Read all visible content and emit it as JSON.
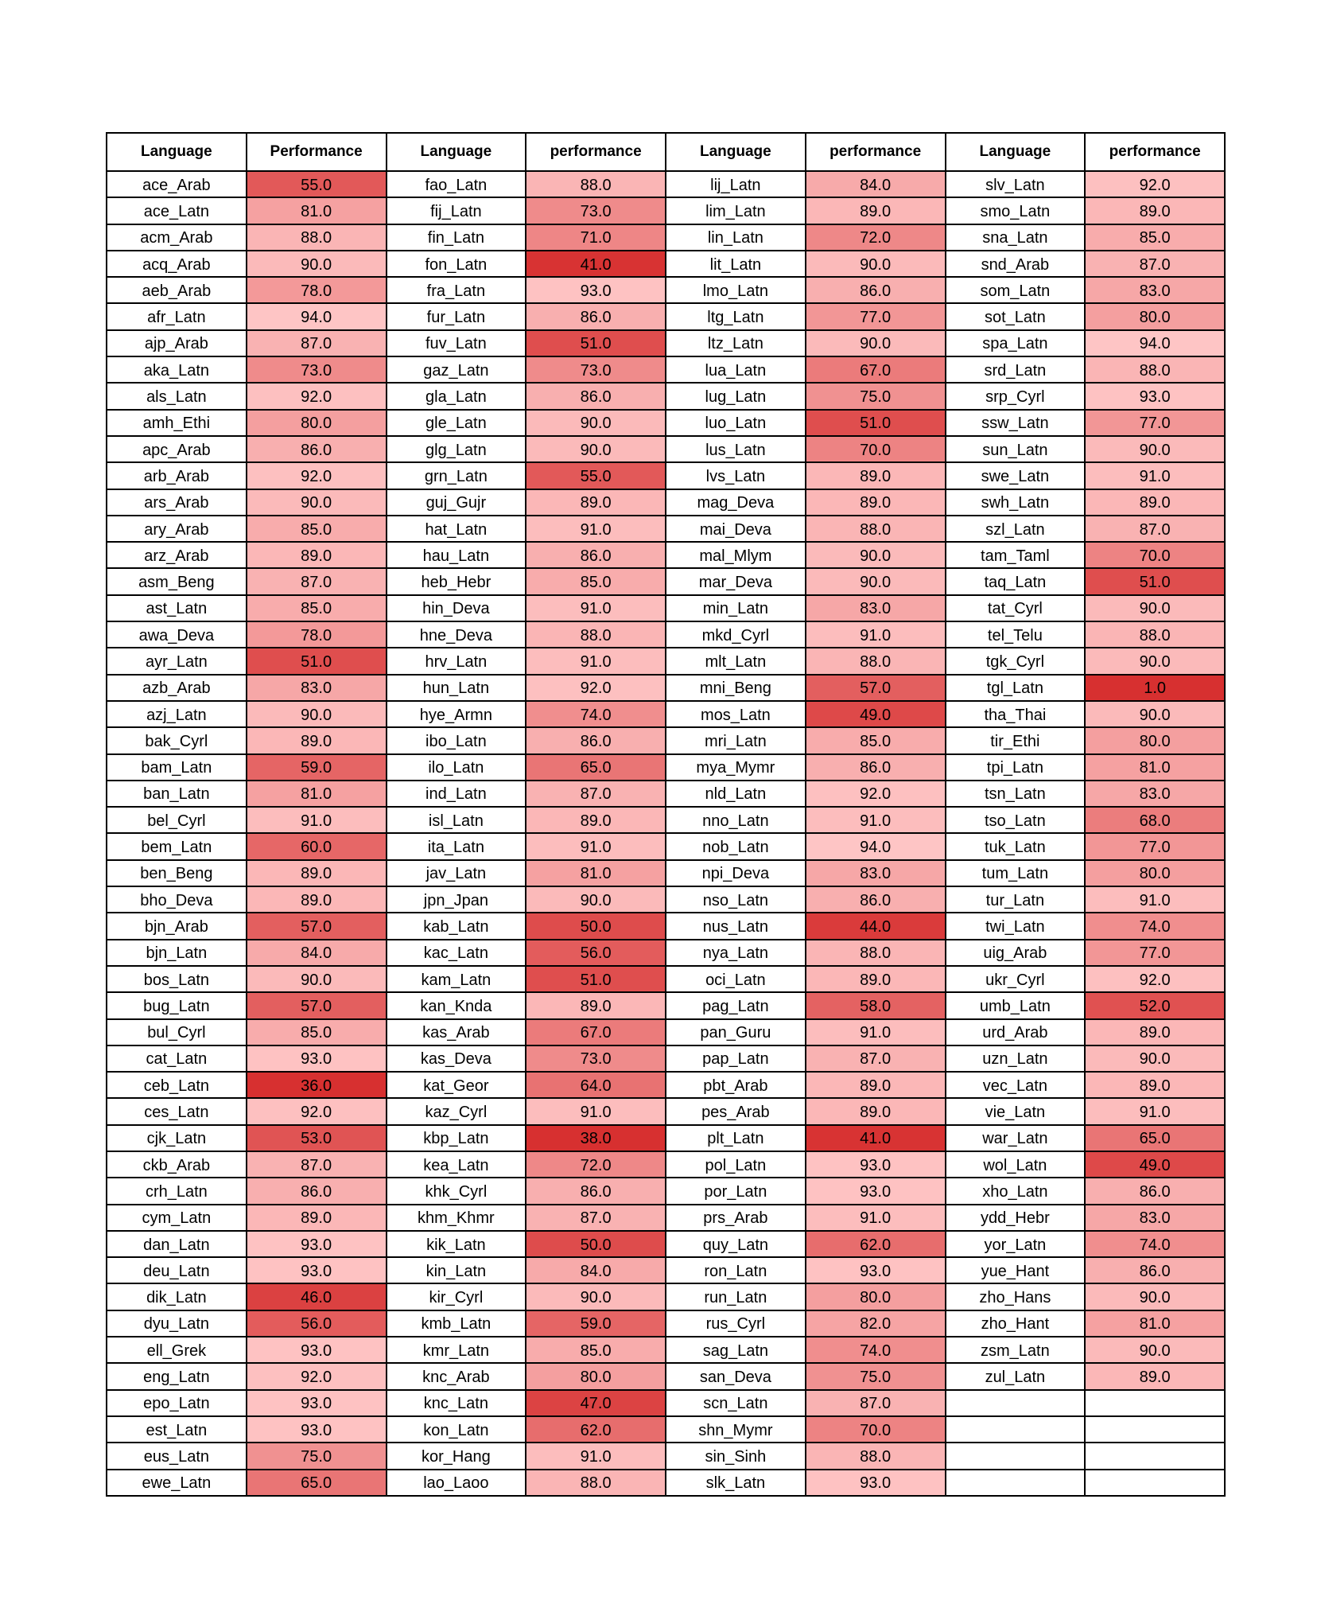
{
  "headers": [
    "Language",
    "Performance",
    "Language",
    "performance",
    "Language",
    "performance",
    "Language",
    "performance"
  ],
  "columns": [
    [
      [
        "ace_Arab",
        "55.0"
      ],
      [
        "ace_Latn",
        "81.0"
      ],
      [
        "acm_Arab",
        "88.0"
      ],
      [
        "acq_Arab",
        "90.0"
      ],
      [
        "aeb_Arab",
        "78.0"
      ],
      [
        "afr_Latn",
        "94.0"
      ],
      [
        "ajp_Arab",
        "87.0"
      ],
      [
        "aka_Latn",
        "73.0"
      ],
      [
        "als_Latn",
        "92.0"
      ],
      [
        "amh_Ethi",
        "80.0"
      ],
      [
        "apc_Arab",
        "86.0"
      ],
      [
        "arb_Arab",
        "92.0"
      ],
      [
        "ars_Arab",
        "90.0"
      ],
      [
        "ary_Arab",
        "85.0"
      ],
      [
        "arz_Arab",
        "89.0"
      ],
      [
        "asm_Beng",
        "87.0"
      ],
      [
        "ast_Latn",
        "85.0"
      ],
      [
        "awa_Deva",
        "78.0"
      ],
      [
        "ayr_Latn",
        "51.0"
      ],
      [
        "azb_Arab",
        "83.0"
      ],
      [
        "azj_Latn",
        "90.0"
      ],
      [
        "bak_Cyrl",
        "89.0"
      ],
      [
        "bam_Latn",
        "59.0"
      ],
      [
        "ban_Latn",
        "81.0"
      ],
      [
        "bel_Cyrl",
        "91.0"
      ],
      [
        "bem_Latn",
        "60.0"
      ],
      [
        "ben_Beng",
        "89.0"
      ],
      [
        "bho_Deva",
        "89.0"
      ],
      [
        "bjn_Arab",
        "57.0"
      ],
      [
        "bjn_Latn",
        "84.0"
      ],
      [
        "bos_Latn",
        "90.0"
      ],
      [
        "bug_Latn",
        "57.0"
      ],
      [
        "bul_Cyrl",
        "85.0"
      ],
      [
        "cat_Latn",
        "93.0"
      ],
      [
        "ceb_Latn",
        "36.0"
      ],
      [
        "ces_Latn",
        "92.0"
      ],
      [
        "cjk_Latn",
        "53.0"
      ],
      [
        "ckb_Arab",
        "87.0"
      ],
      [
        "crh_Latn",
        "86.0"
      ],
      [
        "cym_Latn",
        "89.0"
      ],
      [
        "dan_Latn",
        "93.0"
      ],
      [
        "deu_Latn",
        "93.0"
      ],
      [
        "dik_Latn",
        "46.0"
      ],
      [
        "dyu_Latn",
        "56.0"
      ],
      [
        "ell_Grek",
        "93.0"
      ],
      [
        "eng_Latn",
        "92.0"
      ],
      [
        "epo_Latn",
        "93.0"
      ],
      [
        "est_Latn",
        "93.0"
      ],
      [
        "eus_Latn",
        "75.0"
      ],
      [
        "ewe_Latn",
        "65.0"
      ]
    ],
    [
      [
        "fao_Latn",
        "88.0"
      ],
      [
        "fij_Latn",
        "73.0"
      ],
      [
        "fin_Latn",
        "71.0"
      ],
      [
        "fon_Latn",
        "41.0"
      ],
      [
        "fra_Latn",
        "93.0"
      ],
      [
        "fur_Latn",
        "86.0"
      ],
      [
        "fuv_Latn",
        "51.0"
      ],
      [
        "gaz_Latn",
        "73.0"
      ],
      [
        "gla_Latn",
        "86.0"
      ],
      [
        "gle_Latn",
        "90.0"
      ],
      [
        "glg_Latn",
        "90.0"
      ],
      [
        "grn_Latn",
        "55.0"
      ],
      [
        "guj_Gujr",
        "89.0"
      ],
      [
        "hat_Latn",
        "91.0"
      ],
      [
        "hau_Latn",
        "86.0"
      ],
      [
        "heb_Hebr",
        "85.0"
      ],
      [
        "hin_Deva",
        "91.0"
      ],
      [
        "hne_Deva",
        "88.0"
      ],
      [
        "hrv_Latn",
        "91.0"
      ],
      [
        "hun_Latn",
        "92.0"
      ],
      [
        "hye_Armn",
        "74.0"
      ],
      [
        "ibo_Latn",
        "86.0"
      ],
      [
        "ilo_Latn",
        "65.0"
      ],
      [
        "ind_Latn",
        "87.0"
      ],
      [
        "isl_Latn",
        "89.0"
      ],
      [
        "ita_Latn",
        "91.0"
      ],
      [
        "jav_Latn",
        "81.0"
      ],
      [
        "jpn_Jpan",
        "90.0"
      ],
      [
        "kab_Latn",
        "50.0"
      ],
      [
        "kac_Latn",
        "56.0"
      ],
      [
        "kam_Latn",
        "51.0"
      ],
      [
        "kan_Knda",
        "89.0"
      ],
      [
        "kas_Arab",
        "67.0"
      ],
      [
        "kas_Deva",
        "73.0"
      ],
      [
        "kat_Geor",
        "64.0"
      ],
      [
        "kaz_Cyrl",
        "91.0"
      ],
      [
        "kbp_Latn",
        "38.0"
      ],
      [
        "kea_Latn",
        "72.0"
      ],
      [
        "khk_Cyrl",
        "86.0"
      ],
      [
        "khm_Khmr",
        "87.0"
      ],
      [
        "kik_Latn",
        "50.0"
      ],
      [
        "kin_Latn",
        "84.0"
      ],
      [
        "kir_Cyrl",
        "90.0"
      ],
      [
        "kmb_Latn",
        "59.0"
      ],
      [
        "kmr_Latn",
        "85.0"
      ],
      [
        "knc_Arab",
        "80.0"
      ],
      [
        "knc_Latn",
        "47.0"
      ],
      [
        "kon_Latn",
        "62.0"
      ],
      [
        "kor_Hang",
        "91.0"
      ],
      [
        "lao_Laoo",
        "88.0"
      ]
    ],
    [
      [
        "lij_Latn",
        "84.0"
      ],
      [
        "lim_Latn",
        "89.0"
      ],
      [
        "lin_Latn",
        "72.0"
      ],
      [
        "lit_Latn",
        "90.0"
      ],
      [
        "lmo_Latn",
        "86.0"
      ],
      [
        "ltg_Latn",
        "77.0"
      ],
      [
        "ltz_Latn",
        "90.0"
      ],
      [
        "lua_Latn",
        "67.0"
      ],
      [
        "lug_Latn",
        "75.0"
      ],
      [
        "luo_Latn",
        "51.0"
      ],
      [
        "lus_Latn",
        "70.0"
      ],
      [
        "lvs_Latn",
        "89.0"
      ],
      [
        "mag_Deva",
        "89.0"
      ],
      [
        "mai_Deva",
        "88.0"
      ],
      [
        "mal_Mlym",
        "90.0"
      ],
      [
        "mar_Deva",
        "90.0"
      ],
      [
        "min_Latn",
        "83.0"
      ],
      [
        "mkd_Cyrl",
        "91.0"
      ],
      [
        "mlt_Latn",
        "88.0"
      ],
      [
        "mni_Beng",
        "57.0"
      ],
      [
        "mos_Latn",
        "49.0"
      ],
      [
        "mri_Latn",
        "85.0"
      ],
      [
        "mya_Mymr",
        "86.0"
      ],
      [
        "nld_Latn",
        "92.0"
      ],
      [
        "nno_Latn",
        "91.0"
      ],
      [
        "nob_Latn",
        "94.0"
      ],
      [
        "npi_Deva",
        "83.0"
      ],
      [
        "nso_Latn",
        "86.0"
      ],
      [
        "nus_Latn",
        "44.0"
      ],
      [
        "nya_Latn",
        "88.0"
      ],
      [
        "oci_Latn",
        "89.0"
      ],
      [
        "pag_Latn",
        "58.0"
      ],
      [
        "pan_Guru",
        "91.0"
      ],
      [
        "pap_Latn",
        "87.0"
      ],
      [
        "pbt_Arab",
        "89.0"
      ],
      [
        "pes_Arab",
        "89.0"
      ],
      [
        "plt_Latn",
        "41.0"
      ],
      [
        "pol_Latn",
        "93.0"
      ],
      [
        "por_Latn",
        "93.0"
      ],
      [
        "prs_Arab",
        "91.0"
      ],
      [
        "quy_Latn",
        "62.0"
      ],
      [
        "ron_Latn",
        "93.0"
      ],
      [
        "run_Latn",
        "80.0"
      ],
      [
        "rus_Cyrl",
        "82.0"
      ],
      [
        "sag_Latn",
        "74.0"
      ],
      [
        "san_Deva",
        "75.0"
      ],
      [
        "scn_Latn",
        "87.0"
      ],
      [
        "shn_Mymr",
        "70.0"
      ],
      [
        "sin_Sinh",
        "88.0"
      ],
      [
        "slk_Latn",
        "93.0"
      ]
    ],
    [
      [
        "slv_Latn",
        "92.0"
      ],
      [
        "smo_Latn",
        "89.0"
      ],
      [
        "sna_Latn",
        "85.0"
      ],
      [
        "snd_Arab",
        "87.0"
      ],
      [
        "som_Latn",
        "83.0"
      ],
      [
        "sot_Latn",
        "80.0"
      ],
      [
        "spa_Latn",
        "94.0"
      ],
      [
        "srd_Latn",
        "88.0"
      ],
      [
        "srp_Cyrl",
        "93.0"
      ],
      [
        "ssw_Latn",
        "77.0"
      ],
      [
        "sun_Latn",
        "90.0"
      ],
      [
        "swe_Latn",
        "91.0"
      ],
      [
        "swh_Latn",
        "89.0"
      ],
      [
        "szl_Latn",
        "87.0"
      ],
      [
        "tam_Taml",
        "70.0"
      ],
      [
        "taq_Latn",
        "51.0"
      ],
      [
        "tat_Cyrl",
        "90.0"
      ],
      [
        "tel_Telu",
        "88.0"
      ],
      [
        "tgk_Cyrl",
        "90.0"
      ],
      [
        "tgl_Latn",
        "1.0"
      ],
      [
        "tha_Thai",
        "90.0"
      ],
      [
        "tir_Ethi",
        "80.0"
      ],
      [
        "tpi_Latn",
        "81.0"
      ],
      [
        "tsn_Latn",
        "83.0"
      ],
      [
        "tso_Latn",
        "68.0"
      ],
      [
        "tuk_Latn",
        "77.0"
      ],
      [
        "tum_Latn",
        "80.0"
      ],
      [
        "tur_Latn",
        "91.0"
      ],
      [
        "twi_Latn",
        "74.0"
      ],
      [
        "uig_Arab",
        "77.0"
      ],
      [
        "ukr_Cyrl",
        "92.0"
      ],
      [
        "umb_Latn",
        "52.0"
      ],
      [
        "urd_Arab",
        "89.0"
      ],
      [
        "uzn_Latn",
        "90.0"
      ],
      [
        "vec_Latn",
        "89.0"
      ],
      [
        "vie_Latn",
        "91.0"
      ],
      [
        "war_Latn",
        "65.0"
      ],
      [
        "wol_Latn",
        "49.0"
      ],
      [
        "xho_Latn",
        "86.0"
      ],
      [
        "ydd_Hebr",
        "83.0"
      ],
      [
        "yor_Latn",
        "74.0"
      ],
      [
        "yue_Hant",
        "86.0"
      ],
      [
        "zho_Hans",
        "90.0"
      ],
      [
        "zho_Hant",
        "81.0"
      ],
      [
        "zsm_Latn",
        "90.0"
      ],
      [
        "zul_Latn",
        "89.0"
      ]
    ]
  ],
  "colors": {
    "low": "#d73030",
    "mid": "#e87070",
    "high": "#ffc8c8"
  }
}
